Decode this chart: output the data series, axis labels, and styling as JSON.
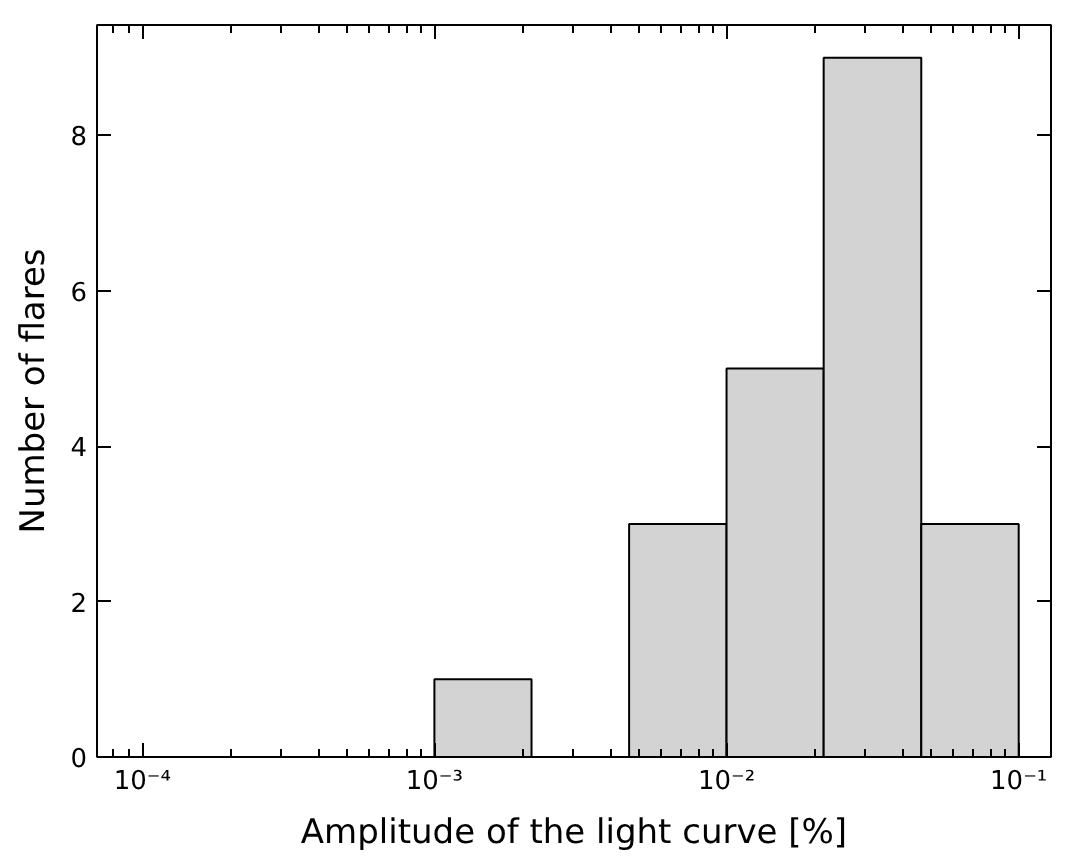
{
  "chart_data": {
    "type": "histogram",
    "xlabel": "Amplitude of the light curve [%]",
    "ylabel": "Number of flares",
    "bins": [
      0.001,
      0.00215,
      0.00464,
      0.01,
      0.0215,
      0.0464,
      0.1
    ],
    "values": [
      1,
      0,
      3,
      5,
      9,
      3
    ],
    "color": "#d3d3d3",
    "log": "x",
    "grid": false,
    "xlim": [
      7e-05,
      0.129
    ],
    "ylim": [
      0,
      9.42
    ],
    "xticks": [
      {
        "value": 0.0001,
        "label": "10⁻⁴"
      },
      {
        "value": 0.001,
        "label": "10⁻³"
      },
      {
        "value": 0.01,
        "label": "10⁻²"
      },
      {
        "value": 0.1,
        "label": "10⁻¹"
      }
    ],
    "yticks": [
      0,
      2,
      4,
      6,
      8
    ]
  }
}
